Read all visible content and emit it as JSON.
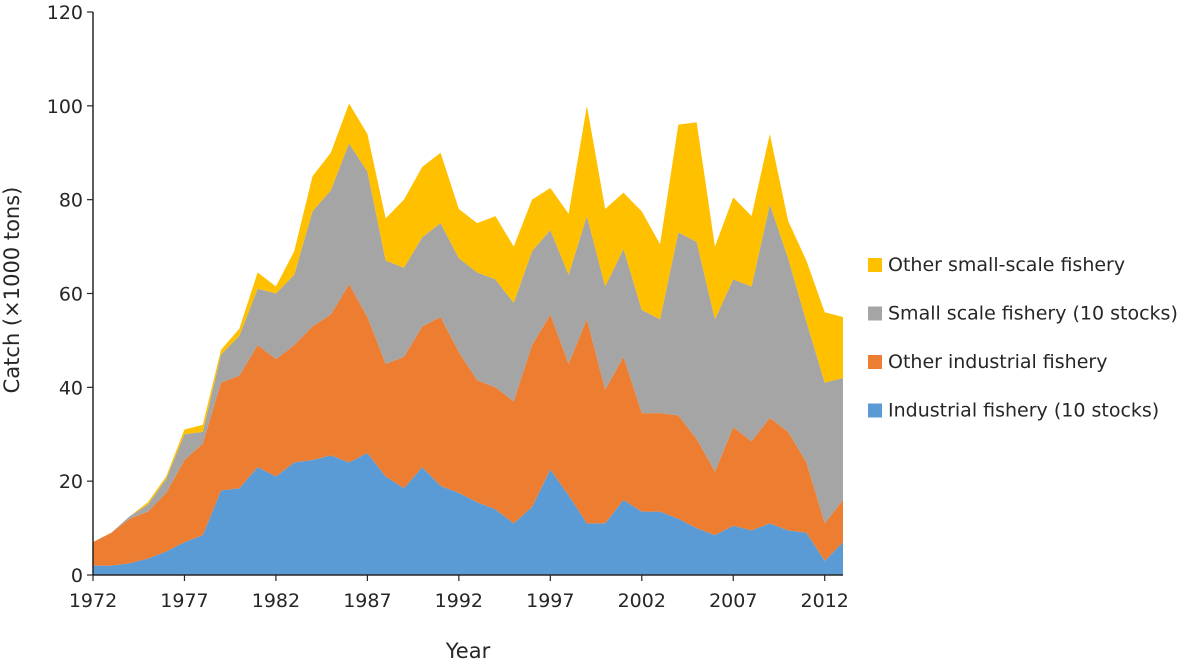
{
  "chart_data": {
    "type": "area",
    "stacked": true,
    "xlabel": "Year",
    "ylabel": "Catch (×1000 tons)",
    "xlim": [
      1972,
      2013
    ],
    "ylim": [
      0,
      120
    ],
    "y_ticks": [
      0,
      20,
      40,
      60,
      80,
      100,
      120
    ],
    "x_ticks": [
      1972,
      1977,
      1982,
      1987,
      1992,
      1997,
      2002,
      2007,
      2012
    ],
    "grid": false,
    "legend_position": "right",
    "x": [
      1972,
      1973,
      1974,
      1975,
      1976,
      1977,
      1978,
      1979,
      1980,
      1981,
      1982,
      1983,
      1984,
      1985,
      1986,
      1987,
      1988,
      1989,
      1990,
      1991,
      1992,
      1993,
      1994,
      1995,
      1996,
      1997,
      1998,
      1999,
      2000,
      2001,
      2002,
      2003,
      2004,
      2005,
      2006,
      2007,
      2008,
      2009,
      2010,
      2011,
      2012,
      2013
    ],
    "series": [
      {
        "name": "Industrial fishery (10 stocks)",
        "color": "#5b9bd5",
        "values": [
          2.0,
          2.0,
          2.5,
          3.5,
          5.0,
          7.0,
          8.5,
          18.0,
          18.5,
          23.0,
          21.0,
          24.0,
          24.5,
          25.5,
          24.0,
          26.0,
          21.0,
          18.5,
          23.0,
          19.0,
          17.5,
          15.5,
          14.0,
          11.0,
          14.5,
          22.5,
          17.0,
          11.0,
          11.0,
          16.0,
          13.5,
          13.5,
          12.0,
          10.0,
          8.5,
          10.5,
          9.5,
          11.0,
          9.5,
          9.0,
          3.0,
          7.0
        ]
      },
      {
        "name": "Other industrial fishery",
        "color": "#ed7d31",
        "values": [
          5.0,
          7.0,
          9.5,
          10.0,
          12.5,
          17.5,
          19.5,
          23.0,
          24.0,
          26.0,
          25.0,
          25.0,
          28.5,
          30.0,
          38.0,
          29.0,
          24.0,
          28.0,
          30.0,
          36.0,
          30.0,
          26.0,
          26.0,
          26.0,
          34.5,
          33.0,
          28.0,
          43.5,
          28.5,
          30.5,
          21.0,
          21.0,
          22.0,
          19.0,
          13.5,
          21.0,
          19.0,
          22.5,
          21.0,
          15.0,
          8.0,
          9.0
        ]
      },
      {
        "name": "Small scale fishery (10 stocks)",
        "color": "#a5a5a5",
        "values": [
          0.0,
          0.0,
          0.5,
          1.5,
          3.0,
          5.5,
          2.5,
          6.0,
          8.5,
          12.0,
          14.0,
          15.0,
          24.5,
          26.5,
          30.0,
          31.0,
          22.0,
          19.0,
          19.0,
          20.0,
          20.0,
          23.0,
          23.0,
          21.0,
          20.0,
          18.0,
          19.0,
          22.0,
          22.0,
          23.0,
          22.0,
          20.0,
          39.0,
          42.0,
          32.5,
          31.5,
          33.0,
          45.5,
          37.0,
          30.0,
          30.0,
          26.0
        ]
      },
      {
        "name": "Other small-scale fishery",
        "color": "#ffc000",
        "values": [
          0.0,
          0.0,
          0.0,
          0.5,
          0.5,
          1.0,
          1.5,
          1.0,
          1.5,
          3.5,
          1.5,
          5.0,
          7.5,
          8.0,
          8.5,
          8.0,
          9.0,
          14.5,
          15.0,
          15.0,
          10.5,
          10.5,
          13.5,
          12.0,
          11.0,
          9.0,
          13.0,
          23.5,
          16.5,
          12.0,
          21.0,
          16.0,
          23.0,
          25.5,
          15.5,
          17.5,
          15.0,
          15.0,
          8.0,
          13.0,
          15.0,
          13.0
        ]
      }
    ],
    "legend_order": [
      "Other small-scale fishery",
      "Small scale fishery (10 stocks)",
      "Other industrial fishery",
      "Industrial fishery (10 stocks)"
    ]
  }
}
